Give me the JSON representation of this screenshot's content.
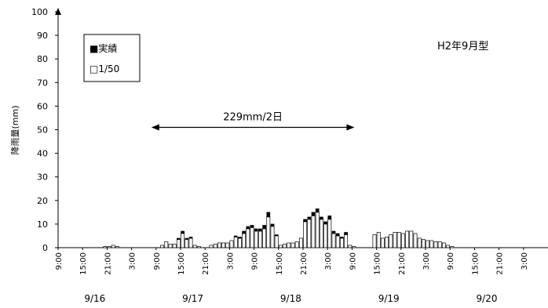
{
  "chart_data": {
    "type": "bar",
    "title": "H2年9月型",
    "ylabel": "降雨量(mm)",
    "xlabel": "",
    "ylim": [
      0,
      100
    ],
    "yticks": [
      0,
      10,
      20,
      30,
      40,
      50,
      60,
      70,
      80,
      90,
      100
    ],
    "time_start": "9/16 9:00",
    "step_hours": 1,
    "x_tick_labels": [
      "9:00",
      "15:00",
      "21:00",
      "3:00",
      "9:00",
      "15:00",
      "21:00",
      "3:00",
      "9:00",
      "15:00",
      "21:00",
      "3:00",
      "9:00",
      "15:00",
      "21:00",
      "3:00",
      "9:00",
      "15:00",
      "21:00",
      "3:00"
    ],
    "date_labels": [
      "9/16",
      "9/17",
      "9/18",
      "9/19",
      "9/20"
    ],
    "legend": {
      "position": "top-left",
      "entries": [
        {
          "name": "実績",
          "symbol": "■",
          "color": "#000000"
        },
        {
          "name": "1/50",
          "symbol": "□",
          "color": "#ffffff"
        }
      ]
    },
    "annotation": {
      "text": "229mm/2日",
      "y": 51,
      "x_from": 24,
      "x_to": 72
    },
    "series": [
      {
        "name": "1/50",
        "values": [
          0,
          0,
          0,
          0,
          0,
          0,
          0,
          0,
          0,
          0,
          0,
          0.5,
          0.5,
          1,
          0.5,
          0,
          0,
          0,
          0,
          0,
          0,
          0,
          0,
          0,
          0,
          1,
          2.5,
          1.5,
          1.5,
          3.5,
          6,
          3.5,
          4,
          1,
          0.5,
          0,
          0,
          1,
          1.5,
          2,
          2,
          2,
          3,
          4.5,
          4,
          6,
          8,
          8.5,
          7,
          7,
          8,
          13,
          9,
          5,
          1,
          1.5,
          2,
          2,
          2.5,
          4,
          11,
          12,
          13.5,
          15,
          12,
          10,
          12,
          6,
          5,
          4,
          5.5,
          1,
          0.5,
          0,
          0,
          0,
          0,
          5.5,
          6.5,
          4,
          4.5,
          5.5,
          6.5,
          6.5,
          6,
          7,
          7,
          6,
          4,
          3.5,
          3,
          3,
          2.5,
          2.5,
          2,
          1,
          0.5,
          0,
          0,
          0,
          0,
          0,
          0,
          0,
          0,
          0,
          0,
          0,
          0,
          0,
          0,
          0,
          0,
          0,
          0,
          0,
          0,
          0,
          0,
          0,
          0,
          0
        ]
      },
      {
        "name": "実績",
        "values": [
          0,
          0,
          0,
          0,
          0,
          0,
          0,
          0,
          0,
          0,
          0,
          0,
          0,
          0,
          0,
          0,
          0,
          0,
          0,
          0,
          0,
          0,
          0,
          0,
          0,
          0,
          0,
          0,
          0,
          0.5,
          1,
          0.5,
          0.5,
          0,
          0,
          0,
          0,
          0,
          0,
          0,
          0,
          0,
          0,
          0.5,
          0.5,
          1,
          1,
          1,
          1,
          1,
          1.5,
          2,
          1,
          0.5,
          0,
          0,
          0,
          0,
          0,
          0,
          1,
          1,
          1.5,
          1.5,
          1,
          1,
          1.5,
          1,
          1,
          0.5,
          1,
          0,
          0,
          0,
          0,
          0,
          0,
          0,
          0,
          0,
          0,
          0,
          0,
          0,
          0,
          0,
          0,
          0,
          0,
          0,
          0,
          0,
          0,
          0,
          0,
          0,
          0,
          0,
          0,
          0,
          0,
          0,
          0,
          0,
          0,
          0,
          0,
          0,
          0,
          0,
          0,
          0,
          0,
          0,
          0,
          0,
          0,
          0,
          0,
          0,
          0,
          0
        ]
      }
    ]
  }
}
